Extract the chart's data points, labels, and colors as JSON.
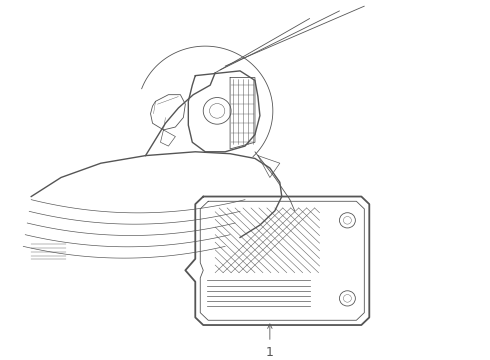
{
  "bg_color": "#ffffff",
  "line_color": "#555555",
  "fig_width": 4.9,
  "fig_height": 3.6,
  "dpi": 100,
  "label_number": "1"
}
